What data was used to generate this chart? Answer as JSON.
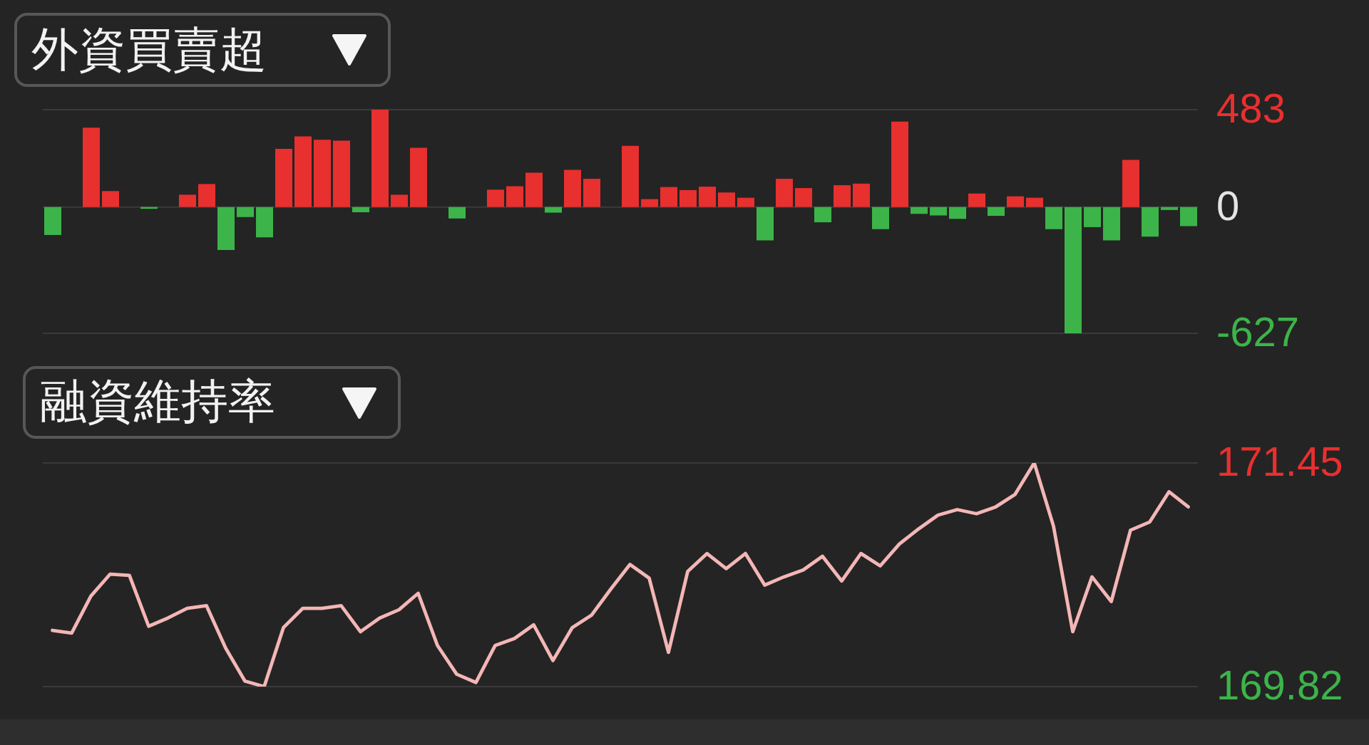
{
  "chart_data": [
    {
      "type": "bar",
      "title": "外資買賣超",
      "categories": [
        null,
        null,
        null,
        null,
        null,
        null,
        null,
        null,
        null,
        null,
        null,
        null,
        null,
        null,
        null,
        null,
        null,
        null,
        null,
        null,
        null,
        null,
        null,
        null,
        null,
        null,
        null,
        null,
        null,
        null,
        null,
        null,
        null,
        null,
        null,
        null,
        null,
        null,
        null,
        null,
        null,
        null,
        null,
        null,
        null,
        null,
        null,
        null,
        null,
        null,
        null,
        null,
        null,
        null,
        null,
        null,
        null,
        null,
        null,
        null
      ],
      "values": [
        -139,
        0,
        394,
        79,
        0,
        -9,
        0,
        61,
        114,
        -213,
        -50,
        -151,
        289,
        350,
        334,
        329,
        -26,
        483,
        61,
        294,
        0,
        -57,
        0,
        86,
        103,
        170,
        -28,
        184,
        140,
        0,
        304,
        39,
        99,
        84,
        101,
        72,
        46,
        -166,
        140,
        94,
        -76,
        108,
        116,
        -110,
        424,
        -34,
        -42,
        -59,
        67,
        -44,
        53,
        46,
        -110,
        -627,
        -100,
        -166,
        234,
        -147,
        -15,
        -95
      ],
      "colors": [
        "#3cb44a",
        "#e8302f",
        "#e8302f",
        "#e8302f",
        "#e8302f",
        "#3cb44a",
        "#e8302f",
        "#e8302f",
        "#e8302f",
        "#3cb44a",
        "#3cb44a",
        "#3cb44a",
        "#e8302f",
        "#e8302f",
        "#e8302f",
        "#e8302f",
        "#3cb44a",
        "#e8302f",
        "#e8302f",
        "#e8302f",
        "#e8302f",
        "#3cb44a",
        "#e8302f",
        "#e8302f",
        "#e8302f",
        "#e8302f",
        "#3cb44a",
        "#e8302f",
        "#e8302f",
        "#e8302f",
        "#e8302f",
        "#e8302f",
        "#e8302f",
        "#e8302f",
        "#e8302f",
        "#e8302f",
        "#e8302f",
        "#3cb44a",
        "#e8302f",
        "#e8302f",
        "#3cb44a",
        "#e8302f",
        "#e8302f",
        "#3cb44a",
        "#e8302f",
        "#3cb44a",
        "#3cb44a",
        "#3cb44a",
        "#e8302f",
        "#3cb44a",
        "#e8302f",
        "#e8302f",
        "#3cb44a",
        "#3cb44a",
        "#3cb44a",
        "#3cb44a",
        "#e8302f",
        "#3cb44a",
        "#3cb44a",
        "#3cb44a"
      ],
      "ylim": [
        -627,
        483
      ],
      "yticks": [
        -627,
        0,
        483
      ],
      "grid": "y",
      "tick_labels": "y"
    },
    {
      "type": "line",
      "title": "融資維持率",
      "categories": [
        null,
        null,
        null,
        null,
        null,
        null,
        null,
        null,
        null,
        null,
        null,
        null,
        null,
        null,
        null,
        null,
        null,
        null,
        null,
        null,
        null,
        null,
        null,
        null,
        null,
        null,
        null,
        null,
        null,
        null,
        null,
        null,
        null,
        null,
        null,
        null,
        null,
        null,
        null,
        null,
        null,
        null,
        null,
        null,
        null,
        null,
        null,
        null,
        null,
        null,
        null,
        null,
        null,
        null,
        null,
        null,
        null,
        null,
        null,
        null
      ],
      "series": [
        {
          "color": "#f4b6b6",
          "values": [
            170.23,
            170.21,
            170.48,
            170.64,
            170.63,
            170.26,
            170.32,
            170.39,
            170.41,
            170.1,
            169.86,
            169.82,
            170.25,
            170.39,
            170.39,
            170.41,
            170.22,
            170.32,
            170.38,
            170.5,
            170.12,
            169.91,
            169.85,
            170.12,
            170.17,
            170.27,
            170.01,
            170.25,
            170.34,
            170.53,
            170.71,
            170.61,
            170.07,
            170.66,
            170.79,
            170.68,
            170.79,
            170.56,
            170.62,
            170.67,
            170.77,
            170.59,
            170.79,
            170.7,
            170.86,
            170.97,
            171.07,
            171.11,
            171.08,
            171.13,
            171.22,
            171.45,
            170.99,
            170.22,
            170.62,
            170.44,
            170.96,
            171.02,
            171.24,
            171.13
          ]
        }
      ],
      "ylim": [
        169.82,
        171.45
      ],
      "yticks": [
        169.82,
        171.45
      ],
      "grid": "y",
      "tick_labels": "y",
      "marker": "none"
    }
  ]
}
